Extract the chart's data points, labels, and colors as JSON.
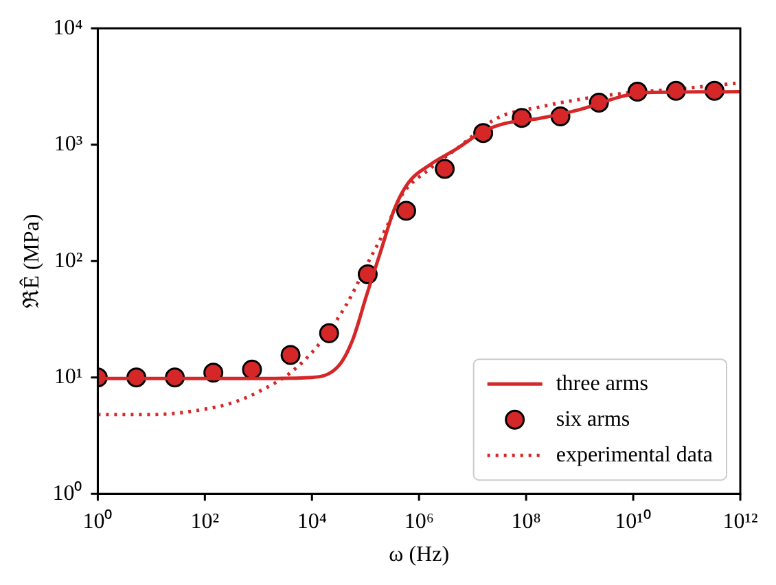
{
  "chart_data": {
    "type": "line",
    "xlabel": "ω (Hz)",
    "ylabel": "ℜÊ (MPa)",
    "log": "xy",
    "xlim": [
      1,
      1000000000000.0
    ],
    "ylim": [
      1,
      10000
    ],
    "xticks": [
      {
        "value": 1,
        "label": "10⁰"
      },
      {
        "value": 100,
        "label": "10²"
      },
      {
        "value": 10000,
        "label": "10⁴"
      },
      {
        "value": 1000000,
        "label": "10⁶"
      },
      {
        "value": 100000000,
        "label": "10⁸"
      },
      {
        "value": 10000000000,
        "label": "10¹⁰"
      },
      {
        "value": 1000000000000,
        "label": "10¹²"
      }
    ],
    "yticks": [
      {
        "value": 1,
        "label": "10⁰"
      },
      {
        "value": 10,
        "label": "10¹"
      },
      {
        "value": 100,
        "label": "10²"
      },
      {
        "value": 1000,
        "label": "10³"
      },
      {
        "value": 10000,
        "label": "10⁴"
      }
    ],
    "grid": false,
    "legend": "bottom right",
    "series": [
      {
        "name": "three arms",
        "type": "line",
        "color": "#d62728",
        "line_style": "solid",
        "marker": "none",
        "x": [
          1,
          1000,
          10000,
          31600,
          57500,
          105000,
          191000,
          347000,
          631000,
          1580000,
          5010000,
          15800000,
          39800000,
          174000000,
          1000000000,
          6200000000,
          15100000000,
          1000000000000
        ],
        "values": [
          9.8,
          9.8,
          10,
          12.6,
          21,
          51,
          120,
          280,
          470,
          670,
          920,
          1300,
          1520,
          1680,
          2000,
          2600,
          2800,
          2850
        ]
      },
      {
        "name": "six arms",
        "type": "scatter",
        "color": "#d62728",
        "marker": "circle",
        "x": [
          1,
          5.25,
          27.5,
          144,
          759,
          3981,
          20900,
          110000,
          575000,
          3020000,
          15800000,
          83000000,
          437000000,
          2290000000,
          12000000000,
          63000000000,
          330000000000
        ],
        "values": [
          10,
          10,
          10,
          11,
          11.7,
          15.6,
          24,
          77,
          270,
          620,
          1260,
          1700,
          1750,
          2300,
          2850,
          2900,
          2900
        ]
      },
      {
        "name": "experimental data",
        "type": "line",
        "color": "#d62728",
        "line_style": "dotted",
        "marker": "none",
        "x": [
          1,
          10.7,
          115,
          380,
          1230,
          3980,
          13200,
          43700,
          105000,
          257000,
          468000,
          1580000,
          5010000,
          29500000,
          174000000,
          1000000000,
          6170000000,
          63100000000,
          1000000000000
        ],
        "values": [
          4.8,
          4.8,
          5.4,
          6.2,
          7.9,
          11,
          19,
          42,
          92,
          203,
          365,
          620,
          920,
          1700,
          2100,
          2450,
          2750,
          3000,
          3400
        ]
      }
    ]
  }
}
